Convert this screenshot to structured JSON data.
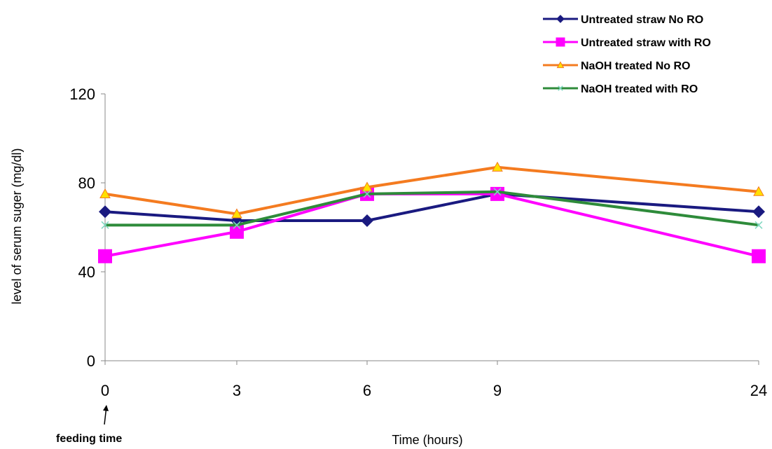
{
  "chart_data": {
    "type": "line",
    "title": "",
    "xlabel": "Time (hours)",
    "ylabel": "level of serum suger (mg/dl)",
    "categories": [
      "0",
      "3",
      "6",
      "9",
      "24"
    ],
    "ylim": [
      0,
      120
    ],
    "yticks": [
      "0",
      "40",
      "80",
      "120"
    ],
    "legend_position": "top-right",
    "grid": false,
    "annotation": "feeding time",
    "series": [
      {
        "name": "Untreated straw No RO",
        "values": [
          67,
          63,
          63,
          75,
          67
        ],
        "color": "#1a1a80",
        "marker": "diamond"
      },
      {
        "name": "Untreated straw with RO",
        "values": [
          47,
          58,
          75,
          75,
          47
        ],
        "color": "#ff00ff",
        "marker": "square"
      },
      {
        "name": "NaOH treated No RO",
        "values": [
          75,
          66,
          78,
          87,
          76
        ],
        "color": "#f47b20",
        "marker": "triangle"
      },
      {
        "name": "NaOH treated with RO",
        "values": [
          61,
          61,
          75,
          76,
          61
        ],
        "color": "#2e8b3a",
        "marker": "x"
      }
    ]
  }
}
